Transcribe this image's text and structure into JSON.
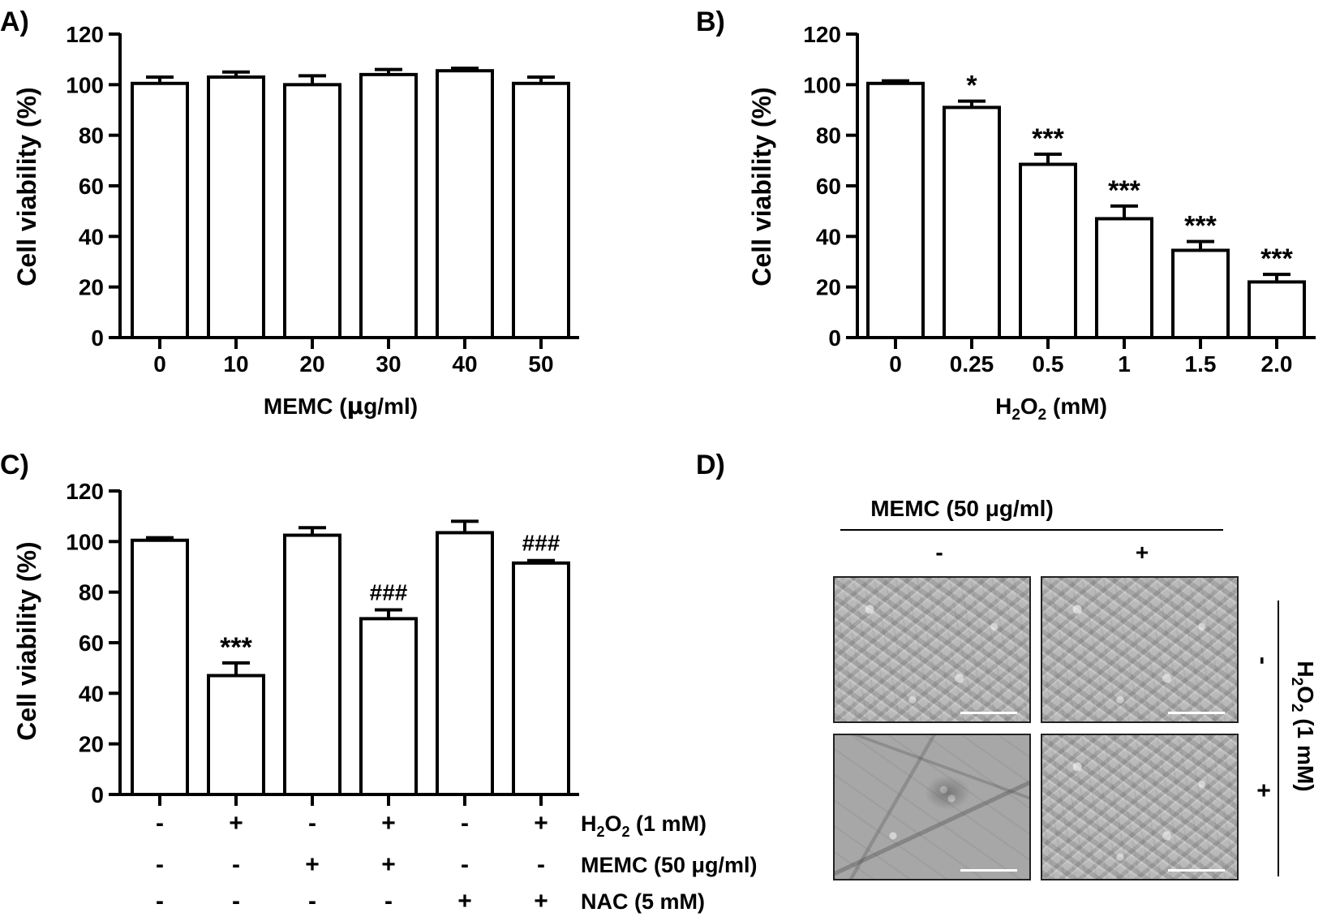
{
  "panels": {
    "A": {
      "label": "A)"
    },
    "B": {
      "label": "B)"
    },
    "C": {
      "label": "C)"
    },
    "D": {
      "label": "D)",
      "memc_header": "MEMC (50 μg/ml)",
      "memc_minus": "-",
      "memc_plus": "+",
      "h2o2_header_main": "H",
      "h2o2_header_sub1": "2",
      "h2o2_header_mid": "O",
      "h2o2_header_sub2": "2",
      "h2o2_header_tail": " (1 mM)",
      "h2o2_minus": "-",
      "h2o2_plus": "+",
      "images": [
        {
          "memc": "-",
          "h2o2": "-",
          "appearance": "dense spindle-shaped cells"
        },
        {
          "memc": "+",
          "h2o2": "-",
          "appearance": "dense spindle-shaped cells"
        },
        {
          "memc": "-",
          "h2o2": "+",
          "appearance": "sparse damaged cells"
        },
        {
          "memc": "+",
          "h2o2": "+",
          "appearance": "dense spindle-shaped cells"
        }
      ]
    }
  },
  "chart_data": [
    {
      "id": "A",
      "type": "bar",
      "ylabel": "Cell viability (%)",
      "xlabel_main": "MEMC (",
      "xlabel_mu": "μ",
      "xlabel_tail": "g/ml)",
      "ylim": [
        0,
        120
      ],
      "yticks": [
        "0",
        "20",
        "40",
        "60",
        "80",
        "100",
        "120"
      ],
      "categories": [
        "0",
        "10",
        "20",
        "30",
        "40",
        "50"
      ],
      "values": [
        100.5,
        103,
        100,
        104,
        105.5,
        100.5
      ],
      "errors": [
        2.5,
        2,
        3.5,
        2,
        1,
        2.5
      ],
      "annotations": [
        "",
        "",
        "",
        "",
        "",
        ""
      ]
    },
    {
      "id": "B",
      "type": "bar",
      "ylabel": "Cell viability (%)",
      "xlabel_main": "H",
      "xlabel_sub1": "2",
      "xlabel_mid": "O",
      "xlabel_sub2": "2",
      "xlabel_tail": " (mM)",
      "ylim": [
        0,
        120
      ],
      "yticks": [
        "0",
        "20",
        "40",
        "60",
        "80",
        "100",
        "120"
      ],
      "categories": [
        "0",
        "0.25",
        "0.5",
        "1",
        "1.5",
        "2.0"
      ],
      "values": [
        100.5,
        91,
        68.5,
        47,
        34.5,
        22
      ],
      "errors": [
        1,
        2.5,
        4,
        5,
        3.5,
        3
      ],
      "annotations": [
        "",
        "*",
        "***",
        "***",
        "***",
        "***"
      ]
    },
    {
      "id": "C",
      "type": "bar",
      "ylabel": "Cell viability (%)",
      "ylim": [
        0,
        120
      ],
      "yticks": [
        "0",
        "20",
        "40",
        "60",
        "80",
        "100",
        "120"
      ],
      "values": [
        100.5,
        47,
        102.5,
        69.5,
        103.5,
        91.5
      ],
      "errors": [
        1,
        5,
        3,
        3.5,
        4.5,
        1
      ],
      "annotations": [
        "",
        "***",
        "",
        "###",
        "",
        "###"
      ],
      "conditions": [
        {
          "label_main": "H",
          "label_sub1": "2",
          "label_mid": "O",
          "label_sub2": "2",
          "label_tail": " (1 mM)",
          "signs": [
            "-",
            "+",
            "-",
            "+",
            "-",
            "+"
          ]
        },
        {
          "label": "MEMC (50 μg/ml)",
          "signs": [
            "-",
            "-",
            "+",
            "+",
            "-",
            "-"
          ]
        },
        {
          "label": "NAC (5 mM)",
          "signs": [
            "-",
            "-",
            "-",
            "-",
            "+",
            "+"
          ]
        }
      ]
    }
  ]
}
